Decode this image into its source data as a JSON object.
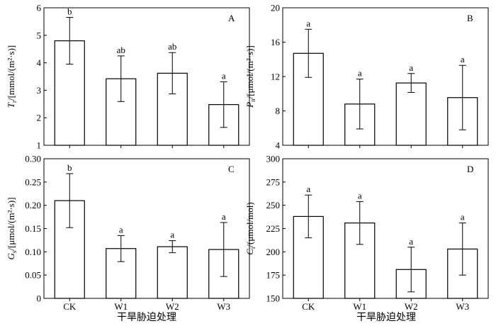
{
  "chart_data": [
    {
      "type": "bar",
      "panel_label": "A",
      "ylabel_main": "T",
      "ylabel_sub": "r",
      "ylabel_rest": "/[mmol/(m²·s)]",
      "categories": [
        "CK",
        "W1",
        "W2",
        "W3"
      ],
      "values": [
        4.8,
        3.42,
        3.62,
        2.48
      ],
      "errors": [
        0.85,
        0.83,
        0.75,
        0.83
      ],
      "letters": [
        "b",
        "ab",
        "ab",
        "a"
      ],
      "ylim": [
        1,
        6
      ],
      "yticks": [
        1,
        2,
        3,
        4,
        5,
        6
      ],
      "ytick_labels": [
        "1",
        "2",
        "3",
        "4",
        "5",
        "6"
      ]
    },
    {
      "type": "bar",
      "panel_label": "B",
      "ylabel_main": "P",
      "ylabel_sub": "n",
      "ylabel_rest": "/[μmol/(m²·s)]",
      "categories": [
        "CK",
        "W1",
        "W2",
        "W3"
      ],
      "values": [
        14.7,
        8.8,
        11.25,
        9.55
      ],
      "errors": [
        2.8,
        2.9,
        1.1,
        3.75
      ],
      "letters": [
        "a",
        "a",
        "a",
        "a"
      ],
      "ylim": [
        4,
        20
      ],
      "yticks": [
        4,
        8,
        12,
        16,
        20
      ],
      "ytick_labels": [
        "4",
        "8",
        "12",
        "16",
        "20"
      ]
    },
    {
      "type": "bar",
      "panel_label": "C",
      "ylabel_main": "G",
      "ylabel_sub": "s",
      "ylabel_rest": "/[μmol/(m²·s)]",
      "categories": [
        "CK",
        "W1",
        "W2",
        "W3"
      ],
      "values": [
        0.21,
        0.107,
        0.111,
        0.105
      ],
      "errors": [
        0.058,
        0.028,
        0.013,
        0.058
      ],
      "letters": [
        "b",
        "a",
        "a",
        "a"
      ],
      "ylim": [
        0,
        0.3
      ],
      "yticks": [
        0,
        0.05,
        0.1,
        0.15,
        0.2,
        0.25,
        0.3
      ],
      "ytick_labels": [
        "0",
        "0.05",
        "0.10",
        "0.15",
        "0.20",
        "0.25",
        "0.30"
      ]
    },
    {
      "type": "bar",
      "panel_label": "D",
      "ylabel_main": "C",
      "ylabel_sub": "i",
      "ylabel_rest": "/(μmol/mol)",
      "categories": [
        "CK",
        "W1",
        "W2",
        "W3"
      ],
      "values": [
        238,
        231,
        181,
        203
      ],
      "errors": [
        23,
        23,
        24,
        28
      ],
      "letters": [
        "a",
        "a",
        "a",
        "a"
      ],
      "ylim": [
        150,
        300
      ],
      "yticks": [
        150,
        175,
        200,
        225,
        250,
        275,
        300
      ],
      "ytick_labels": [
        "150",
        "175",
        "200",
        "225",
        "250",
        "275",
        "300"
      ]
    }
  ],
  "xaxis_title": "干旱胁迫处理"
}
